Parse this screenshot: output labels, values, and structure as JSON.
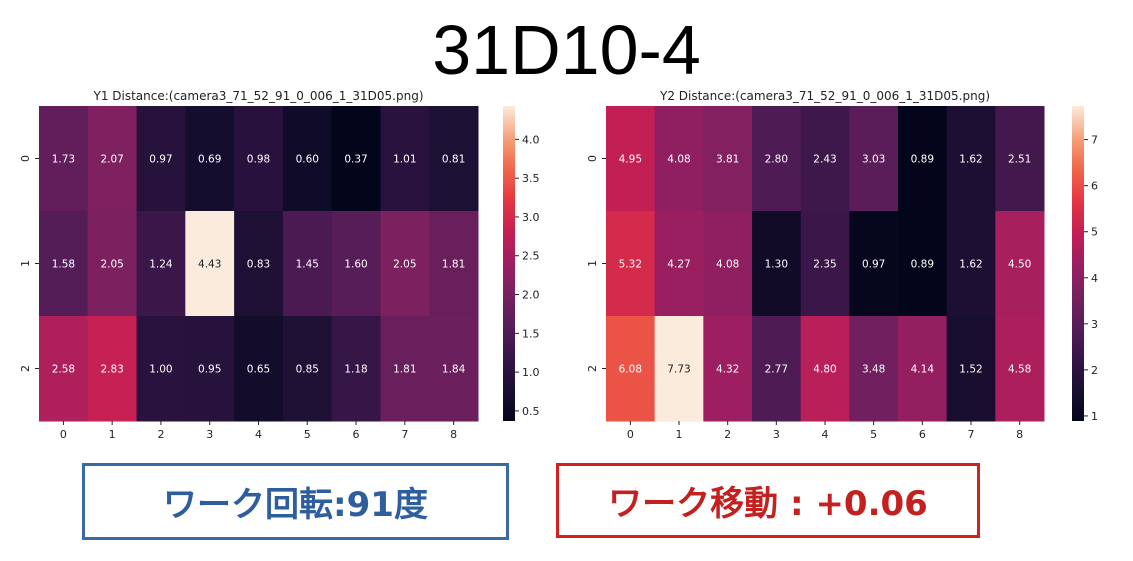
{
  "page_title": "31D10-4",
  "annotations": {
    "rotation": "ワーク回転:91度",
    "shift": "ワーク移動 : +0.06"
  },
  "colors": {
    "colormap": "rocket",
    "rotation_box_border": "#3a6aa6",
    "rotation_box_text": "#2e5e9e",
    "shift_box_border": "#d32020",
    "shift_box_text": "#c42020"
  },
  "chart_data": [
    {
      "type": "heatmap",
      "title": "Y1 Distance:(camera3_71_52_91_0_006_1_31D05.png)",
      "x_categories": [
        "0",
        "1",
        "2",
        "3",
        "4",
        "5",
        "6",
        "7",
        "8"
      ],
      "y_categories": [
        "0",
        "1",
        "2"
      ],
      "values": [
        [
          1.73,
          2.07,
          0.97,
          0.69,
          0.98,
          0.6,
          0.37,
          1.01,
          0.81
        ],
        [
          1.58,
          2.05,
          1.24,
          4.43,
          0.83,
          1.45,
          1.6,
          2.05,
          1.81
        ],
        [
          2.58,
          2.83,
          1.0,
          0.95,
          0.65,
          0.85,
          1.18,
          1.81,
          1.84
        ]
      ],
      "labels": [
        [
          "1.73",
          "2.07",
          "0.97",
          "0.69",
          "0.98",
          "0.60",
          "0.37",
          "1.01",
          "0.81"
        ],
        [
          "1.58",
          "2.05",
          "1.24",
          "4.43",
          "0.83",
          "1.45",
          "1.60",
          "2.05",
          "1.81"
        ],
        [
          "2.58",
          "2.83",
          "1.00",
          "0.95",
          "0.65",
          "0.85",
          "1.18",
          "1.81",
          "1.84"
        ]
      ],
      "colorbar": {
        "range": [
          0.37,
          4.43
        ],
        "ticks": [
          0.5,
          1.0,
          1.5,
          2.0,
          2.5,
          3.0,
          3.5,
          4.0
        ],
        "tick_labels": [
          "0.5",
          "1.0",
          "1.5",
          "2.0",
          "2.5",
          "3.0",
          "3.5",
          "4.0"
        ]
      }
    },
    {
      "type": "heatmap",
      "title": "Y2 Distance:(camera3_71_52_91_0_006_1_31D05.png)",
      "x_categories": [
        "0",
        "1",
        "2",
        "3",
        "4",
        "5",
        "6",
        "7",
        "8"
      ],
      "y_categories": [
        "0",
        "1",
        "2"
      ],
      "values": [
        [
          4.95,
          4.08,
          3.81,
          2.8,
          2.43,
          3.03,
          0.89,
          1.62,
          2.51
        ],
        [
          5.32,
          4.27,
          4.08,
          1.3,
          2.35,
          0.97,
          0.89,
          1.62,
          4.5
        ],
        [
          6.08,
          7.73,
          4.32,
          2.77,
          4.8,
          3.48,
          4.14,
          1.52,
          4.58
        ]
      ],
      "labels": [
        [
          "4.95",
          "4.08",
          "3.81",
          "2.80",
          "2.43",
          "3.03",
          "0.89",
          "1.62",
          "2.51"
        ],
        [
          "5.32",
          "4.27",
          "4.08",
          "1.30",
          "2.35",
          "0.97",
          "0.89",
          "1.62",
          "4.50"
        ],
        [
          "6.08",
          "7.73",
          "4.32",
          "2.77",
          "4.80",
          "3.48",
          "4.14",
          "1.52",
          "4.58"
        ]
      ],
      "colorbar": {
        "range": [
          0.89,
          7.73
        ],
        "ticks": [
          1,
          2,
          3,
          4,
          5,
          6,
          7
        ],
        "tick_labels": [
          "1",
          "2",
          "3",
          "4",
          "5",
          "6",
          "7"
        ]
      }
    }
  ]
}
